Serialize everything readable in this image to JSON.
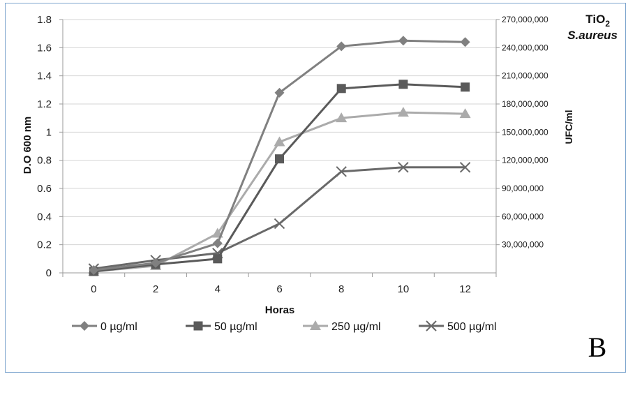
{
  "chart_data": {
    "type": "line",
    "title_line1": "TiO",
    "title_sub": "2",
    "title_line2": "S.aureus",
    "panel_letter": "B",
    "xlabel": "Horas",
    "ylabel": "D.O 600 nm",
    "ylabel_right": "UFC/ml",
    "x": [
      0,
      2,
      4,
      6,
      8,
      10,
      12
    ],
    "x_tick_labels": [
      "0",
      "2",
      "4",
      "6",
      "8",
      "10",
      "12"
    ],
    "xlim": [
      -1,
      13
    ],
    "ylim": [
      0,
      1.8
    ],
    "y_ticks": [
      0,
      0.2,
      0.4,
      0.6,
      0.8,
      1,
      1.2,
      1.4,
      1.6,
      1.8
    ],
    "y_tick_labels": [
      "0",
      "0.2",
      "0.4",
      "0.6",
      "0.8",
      "1",
      "1.2",
      "1.4",
      "1.6",
      "1.8"
    ],
    "ylim_right": [
      0,
      270000000
    ],
    "y_ticks_right": [
      30000000,
      60000000,
      90000000,
      120000000,
      150000000,
      180000000,
      210000000,
      240000000,
      270000000
    ],
    "y_tick_labels_right": [
      "30,000,000",
      "60,000,000",
      "90,000,000",
      "120,000,000",
      "150,000,000",
      "180,000,000",
      "210,000,000",
      "240,000,000",
      "270,000,000"
    ],
    "legend_position": "bottom",
    "grid": "horizontal",
    "series": [
      {
        "name": "0 µg/ml",
        "marker": "diamond",
        "color": "#808080",
        "values": [
          0.02,
          0.07,
          0.21,
          1.28,
          1.61,
          1.65,
          1.64
        ]
      },
      {
        "name": "50 µg/ml",
        "marker": "square",
        "color": "#5a5a5a",
        "values": [
          0.01,
          0.06,
          0.1,
          0.81,
          1.31,
          1.34,
          1.32
        ]
      },
      {
        "name": "250 µg/ml",
        "marker": "triangle",
        "color": "#ababab",
        "values": [
          0.01,
          0.05,
          0.28,
          0.93,
          1.1,
          1.14,
          1.13
        ]
      },
      {
        "name": "500 µg/ml",
        "marker": "x",
        "color": "#696969",
        "values": [
          0.03,
          0.09,
          0.14,
          0.35,
          0.72,
          0.75,
          0.75
        ]
      }
    ]
  }
}
